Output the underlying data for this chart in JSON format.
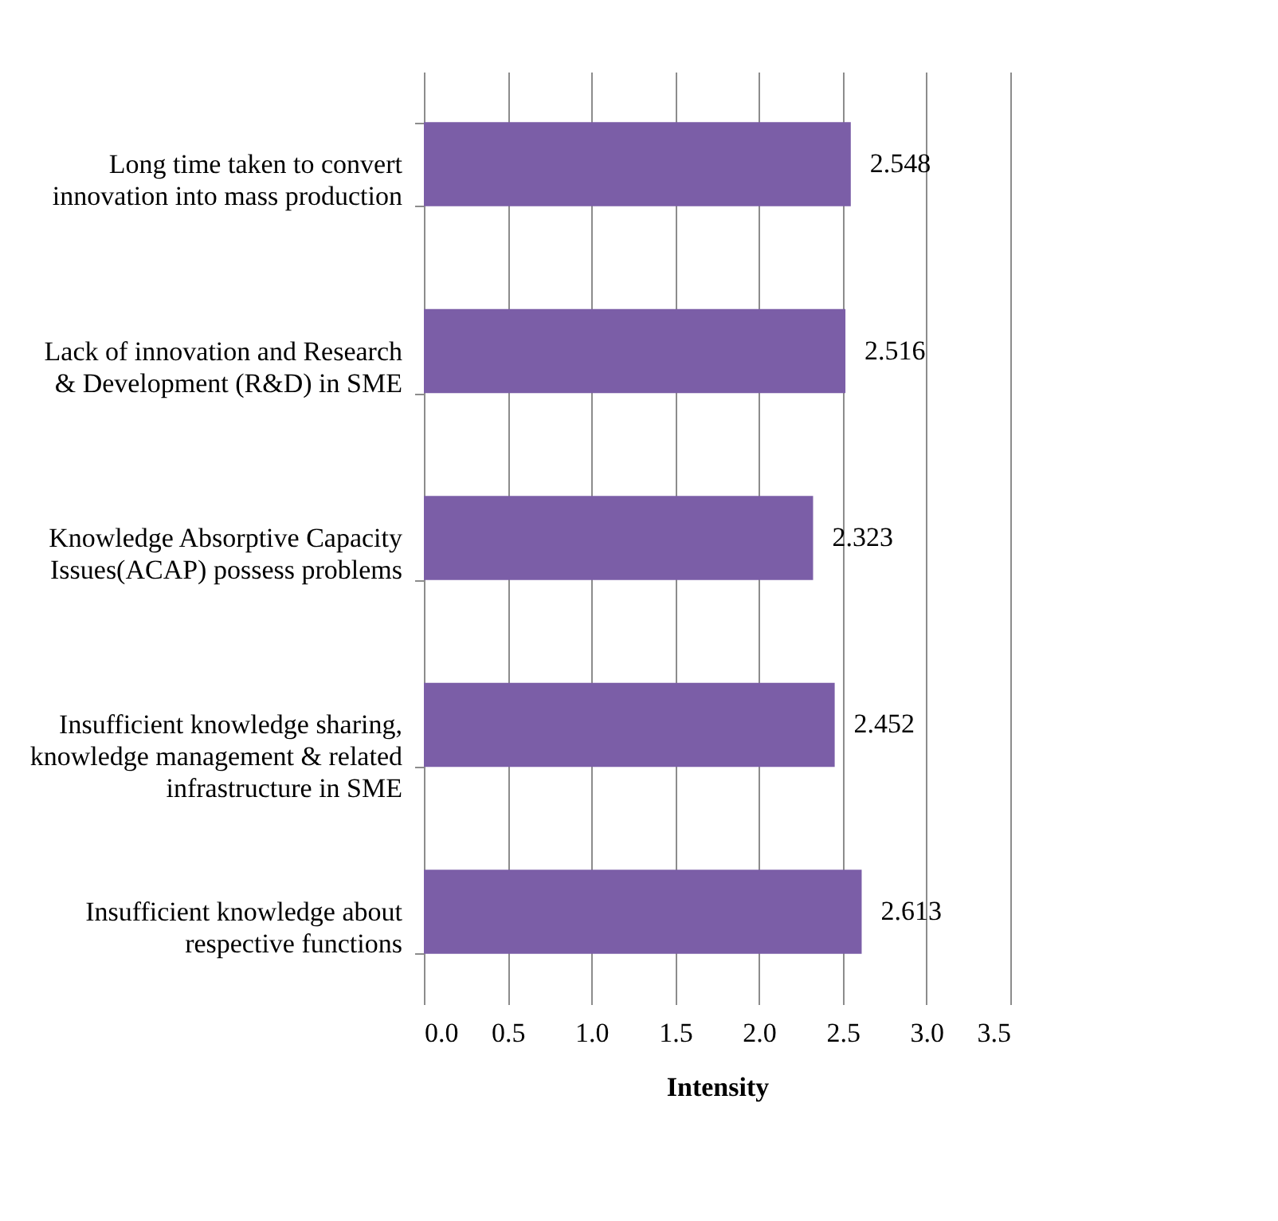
{
  "chart_data": {
    "type": "bar",
    "orientation": "horizontal",
    "xlabel": "Intensity",
    "categories": [
      "Long time taken to convert innovation into mass production",
      "Lack of innovation and Research & Development (R&D) in SME",
      "Knowledge Absorptive Capacity Issues(ACAP) possess problems",
      "Insufficient knowledge sharing, knowledge management & related infrastructure in SME",
      "Insufficient knowledge about respective functions"
    ],
    "values": [
      2.548,
      2.516,
      2.323,
      2.452,
      2.613
    ],
    "color": "#7b5ea7",
    "data_labels": true,
    "grid": "x",
    "xlim": [
      0,
      3.5
    ],
    "xticks": [
      {
        "value": 0,
        "label": "0.0"
      },
      {
        "value": 0.5,
        "label": "0.5"
      },
      {
        "value": 1,
        "label": "1.0"
      },
      {
        "value": 1.5,
        "label": "1.5"
      },
      {
        "value": 2,
        "label": "2.0"
      },
      {
        "value": 2.5,
        "label": "2.5"
      },
      {
        "value": 3,
        "label": "3.0"
      },
      {
        "value": 3.5,
        "label": "3.5"
      }
    ]
  }
}
